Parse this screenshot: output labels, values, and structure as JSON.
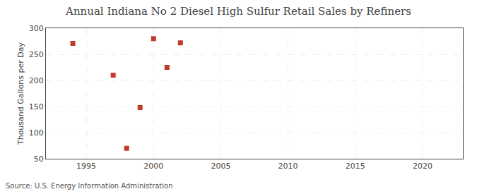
{
  "chart_data": {
    "type": "scatter",
    "title": "Annual Indiana No 2 Diesel High Sulfur Retail Sales by Refiners",
    "ylabel": "Thousand Gallons per Day",
    "annotations": [
      "Source: U.S. Energy Information Administration"
    ],
    "x": [
      1994,
      1997,
      1998,
      1999,
      2000,
      2001,
      2002
    ],
    "values": [
      271,
      210,
      70,
      148,
      280,
      225,
      272
    ],
    "color": "#c0392b",
    "marker": "square",
    "xlim": [
      1992,
      2023
    ],
    "ylim": [
      50,
      300
    ],
    "xticks": [
      1995,
      2000,
      2005,
      2010,
      2015,
      2020
    ],
    "yticks": [
      50,
      100,
      150,
      200,
      250,
      300
    ],
    "grid": true
  }
}
